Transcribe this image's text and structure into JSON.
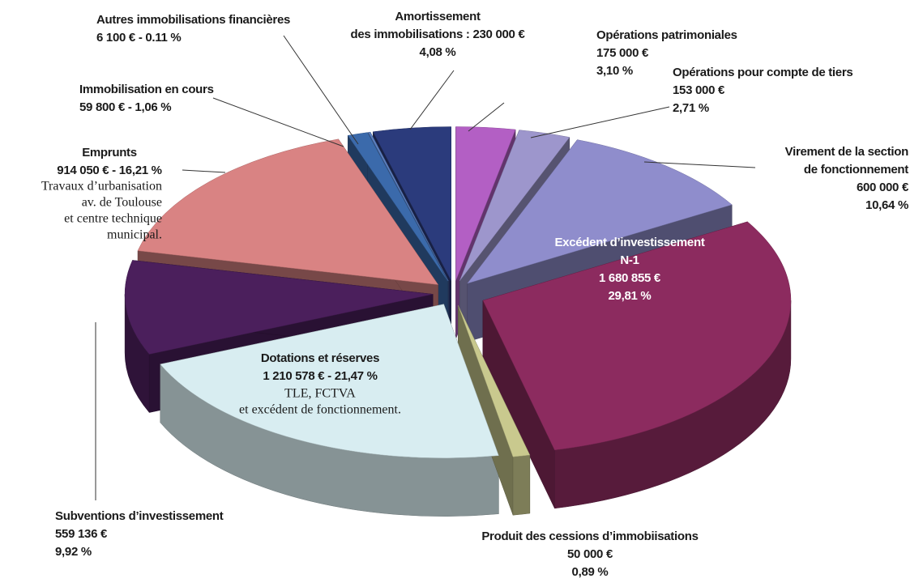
{
  "chart_data": {
    "type": "pie",
    "categories": [
      [
        "Opérations patrimoniales"
      ],
      [
        "Opérations pour compte de tiers"
      ],
      [
        "Virement de la section",
        "de fonctionnement"
      ],
      [
        "Excédent d’investissement",
        "N-1"
      ],
      [
        "Produit des cessions d’immobiisations"
      ],
      [
        "Dotations et réserves"
      ],
      [
        "Subventions d’investissement"
      ],
      [
        "Emprunts"
      ],
      [
        "Immobilisation en cours"
      ],
      [
        "Autres immobilisations financières"
      ],
      [
        "Amortissement",
        "des immobilisations : "
      ]
    ],
    "amounts": [
      175000,
      153000,
      600000,
      1680855,
      50000,
      1210578,
      559136,
      914050,
      59800,
      6100,
      230000
    ],
    "amount_labels": [
      "175 000 €",
      "153 000 €",
      "600 000 €",
      "1 680 855 €",
      "50 000 €",
      "1 210 578 € - ",
      "559 136 €",
      "914 050 € - ",
      "59 800 € - ",
      "6 100 € - ",
      "230 000 €"
    ],
    "values": [
      3.1,
      2.71,
      10.64,
      29.81,
      0.89,
      21.47,
      9.92,
      16.21,
      1.06,
      0.11,
      4.08
    ],
    "value_labels": [
      "3,10 %",
      "2,71 %",
      "10,64 %",
      "29,81 %",
      "0,89 %",
      "21,47 %",
      "9,92 %",
      "16,21 %",
      "1,06 %",
      "0.11 %",
      "4,08 %"
    ],
    "notes": [
      null,
      null,
      null,
      null,
      null,
      [
        "TLE, FCTVA",
        "et excédent de fonctionnement."
      ],
      null,
      [
        "Travaux d’urbanisation",
        "av. de Toulouse",
        "et centre technique",
        "municipal."
      ],
      null,
      null,
      null
    ],
    "colors": [
      "#b35fc4",
      "#9d96cc",
      "#8f8dcc",
      "#8c2b5f",
      "#c9c98e",
      "#d8edf1",
      "#4b1f5c",
      "#d98383",
      "#3b6aab",
      "#5b7fc0",
      "#2b3b7c"
    ]
  }
}
